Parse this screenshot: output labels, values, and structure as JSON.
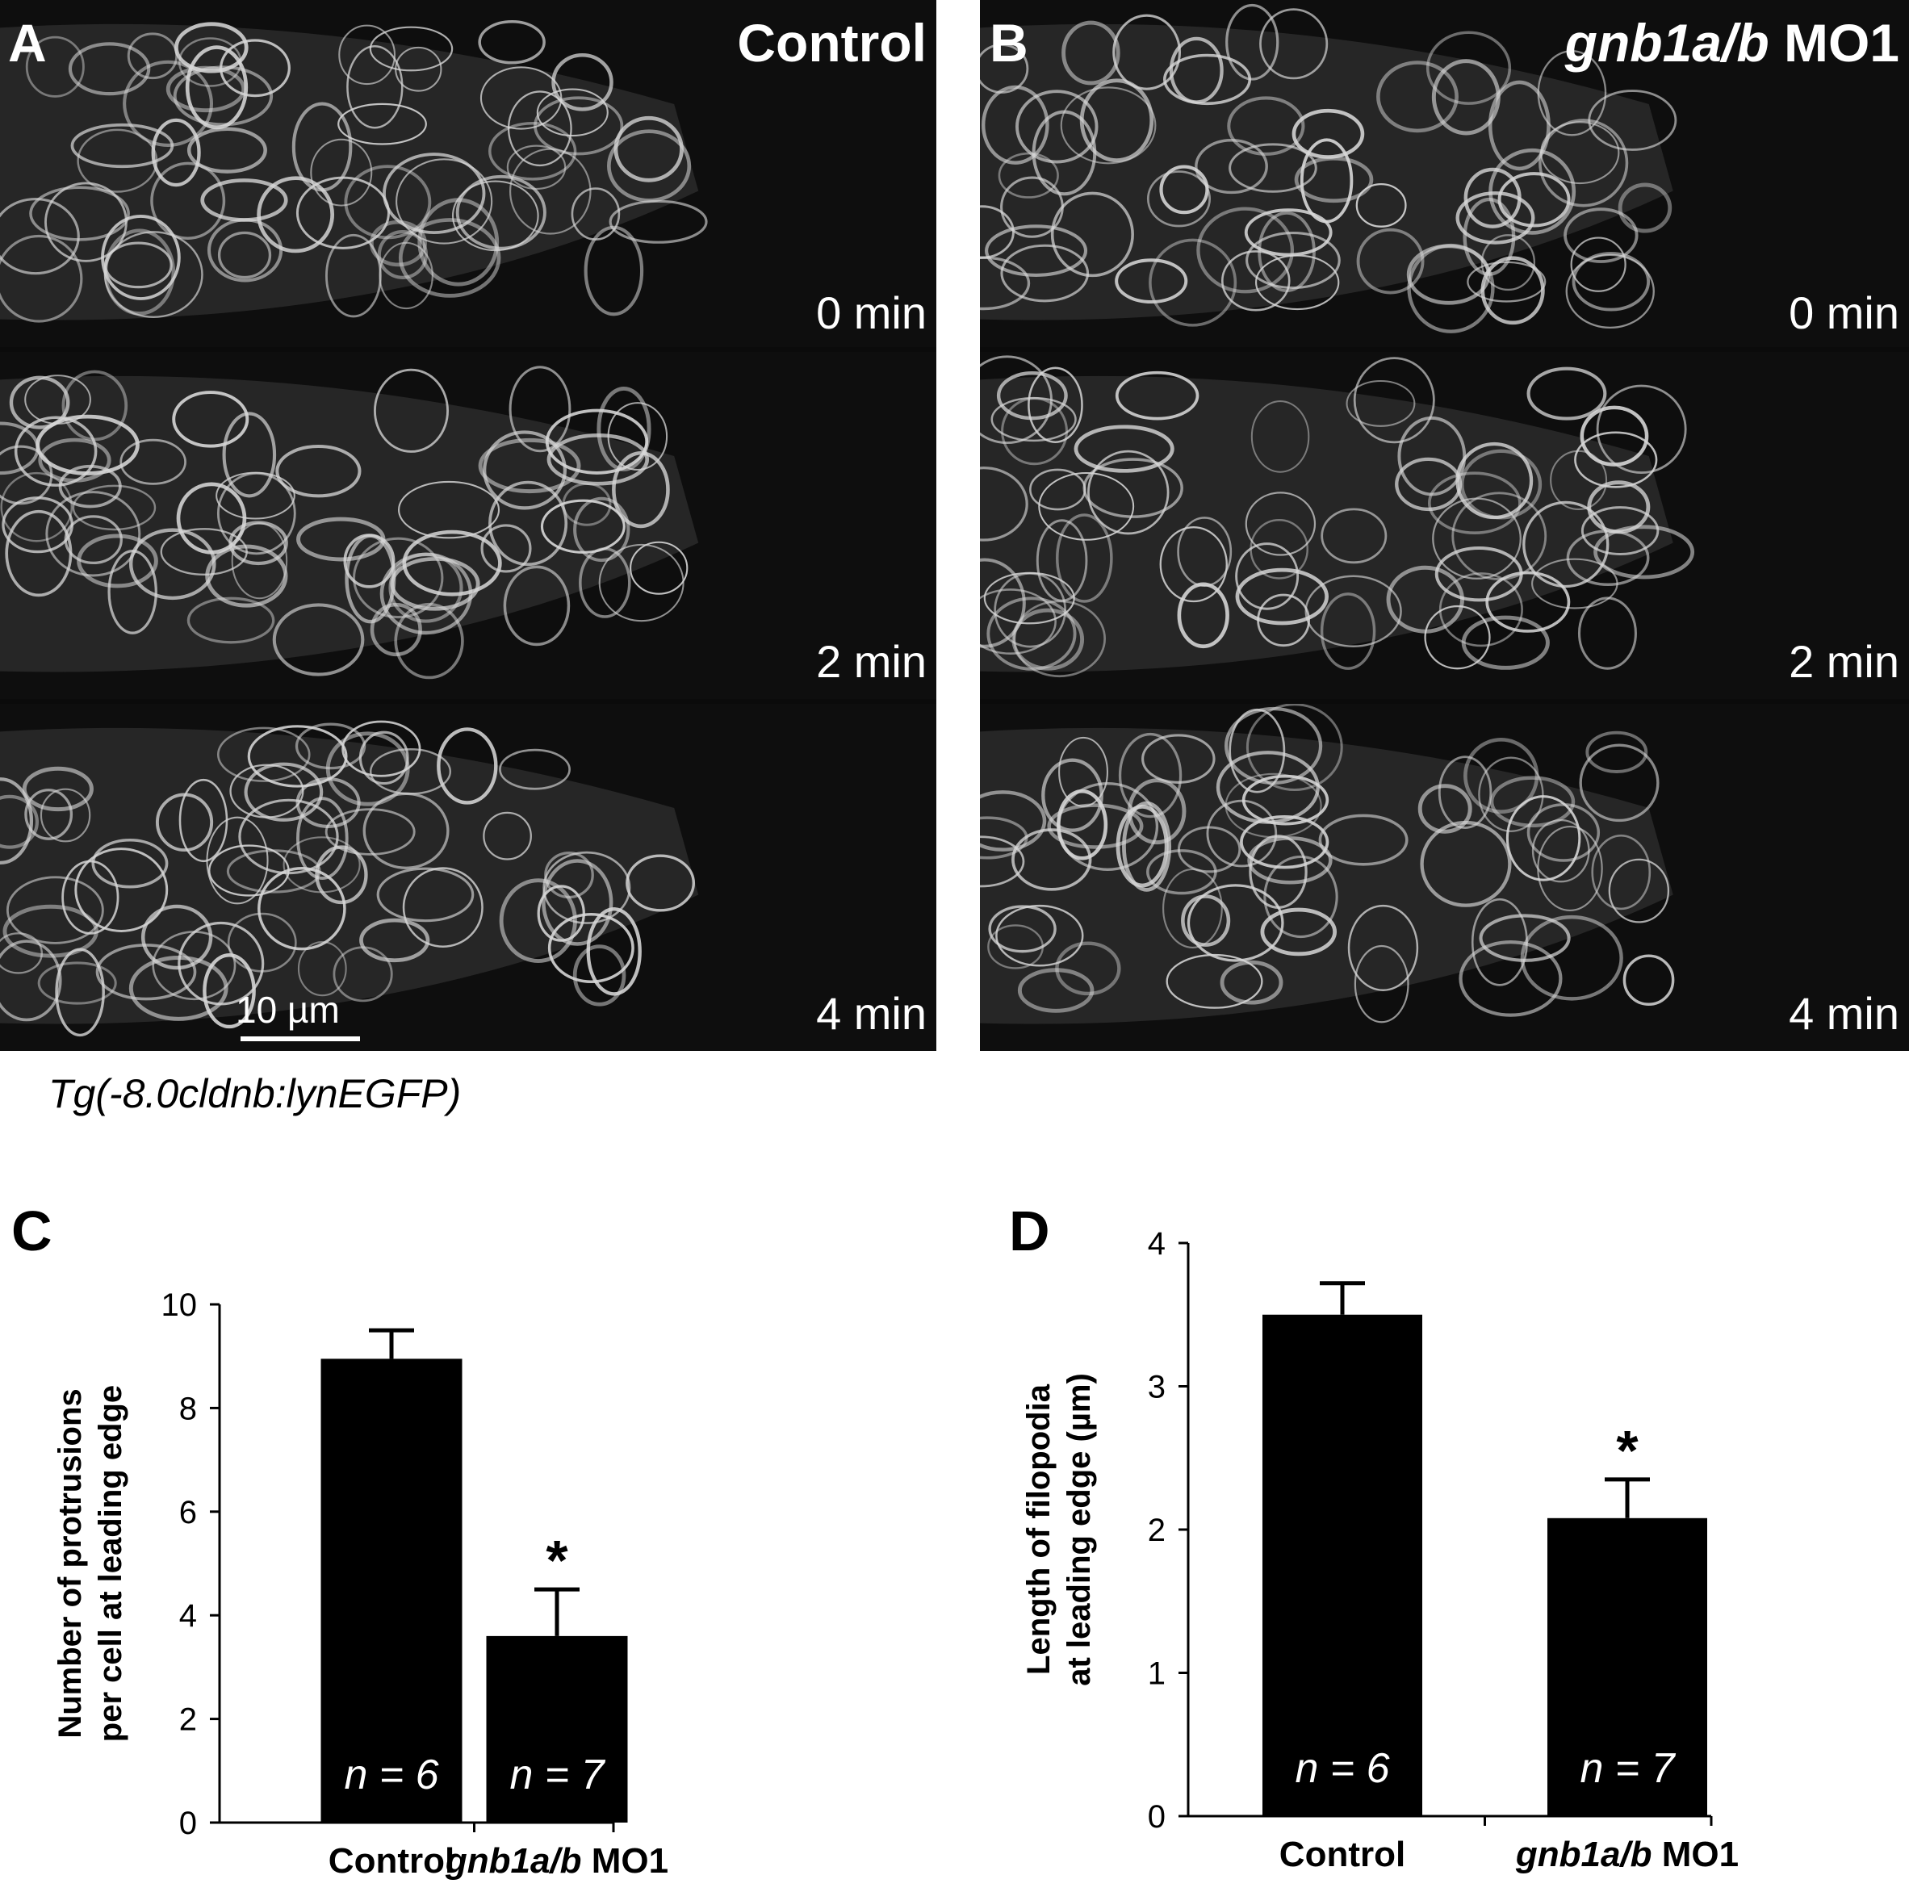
{
  "panels": {
    "A": {
      "letter": "A",
      "condition": "Control",
      "times": [
        "0 min",
        "2 min",
        "4 min"
      ],
      "scale_bar": "10 µm"
    },
    "B": {
      "letter": "B",
      "condition_italic": "gnb1a/b",
      "condition_rest": " MO1",
      "times": [
        "0 min",
        "2 min",
        "4 min"
      ]
    }
  },
  "caption": "Tg(-8.0cldnb:lynEGFP)",
  "colors": {
    "bar": "#000000",
    "micrograph_bg": "#0e0e0e",
    "membrane": "#d8d8d8"
  },
  "chart_data": [
    {
      "letter": "C",
      "type": "bar",
      "categories": [
        "Control",
        "gnb1a/b MO1"
      ],
      "category_italic": [
        "",
        "gnb1a/b"
      ],
      "category_rest": [
        "Control",
        " MO1"
      ],
      "values": [
        8.95,
        3.6
      ],
      "errors": [
        0.55,
        0.9
      ],
      "n_labels": [
        "n = 6",
        "n = 7"
      ],
      "significance": [
        "",
        "*"
      ],
      "ylabel_lines": [
        "Number of protrusions",
        "per cell at leading edge"
      ],
      "ylim": [
        0,
        10
      ],
      "yticks": [
        0,
        2,
        4,
        6,
        8,
        10
      ]
    },
    {
      "letter": "D",
      "type": "bar",
      "categories": [
        "Control",
        "gnb1a/b MO1"
      ],
      "category_italic": [
        "",
        "gnb1a/b"
      ],
      "category_rest": [
        "Control",
        " MO1"
      ],
      "values": [
        3.5,
        2.08
      ],
      "errors": [
        0.22,
        0.27
      ],
      "n_labels": [
        "n = 6",
        "n = 7"
      ],
      "significance": [
        "",
        "*"
      ],
      "ylabel_lines": [
        "Length of filopodia",
        "at leading edge (µm)"
      ],
      "ylim": [
        0,
        4
      ],
      "yticks": [
        0,
        1,
        2,
        3,
        4
      ]
    }
  ]
}
